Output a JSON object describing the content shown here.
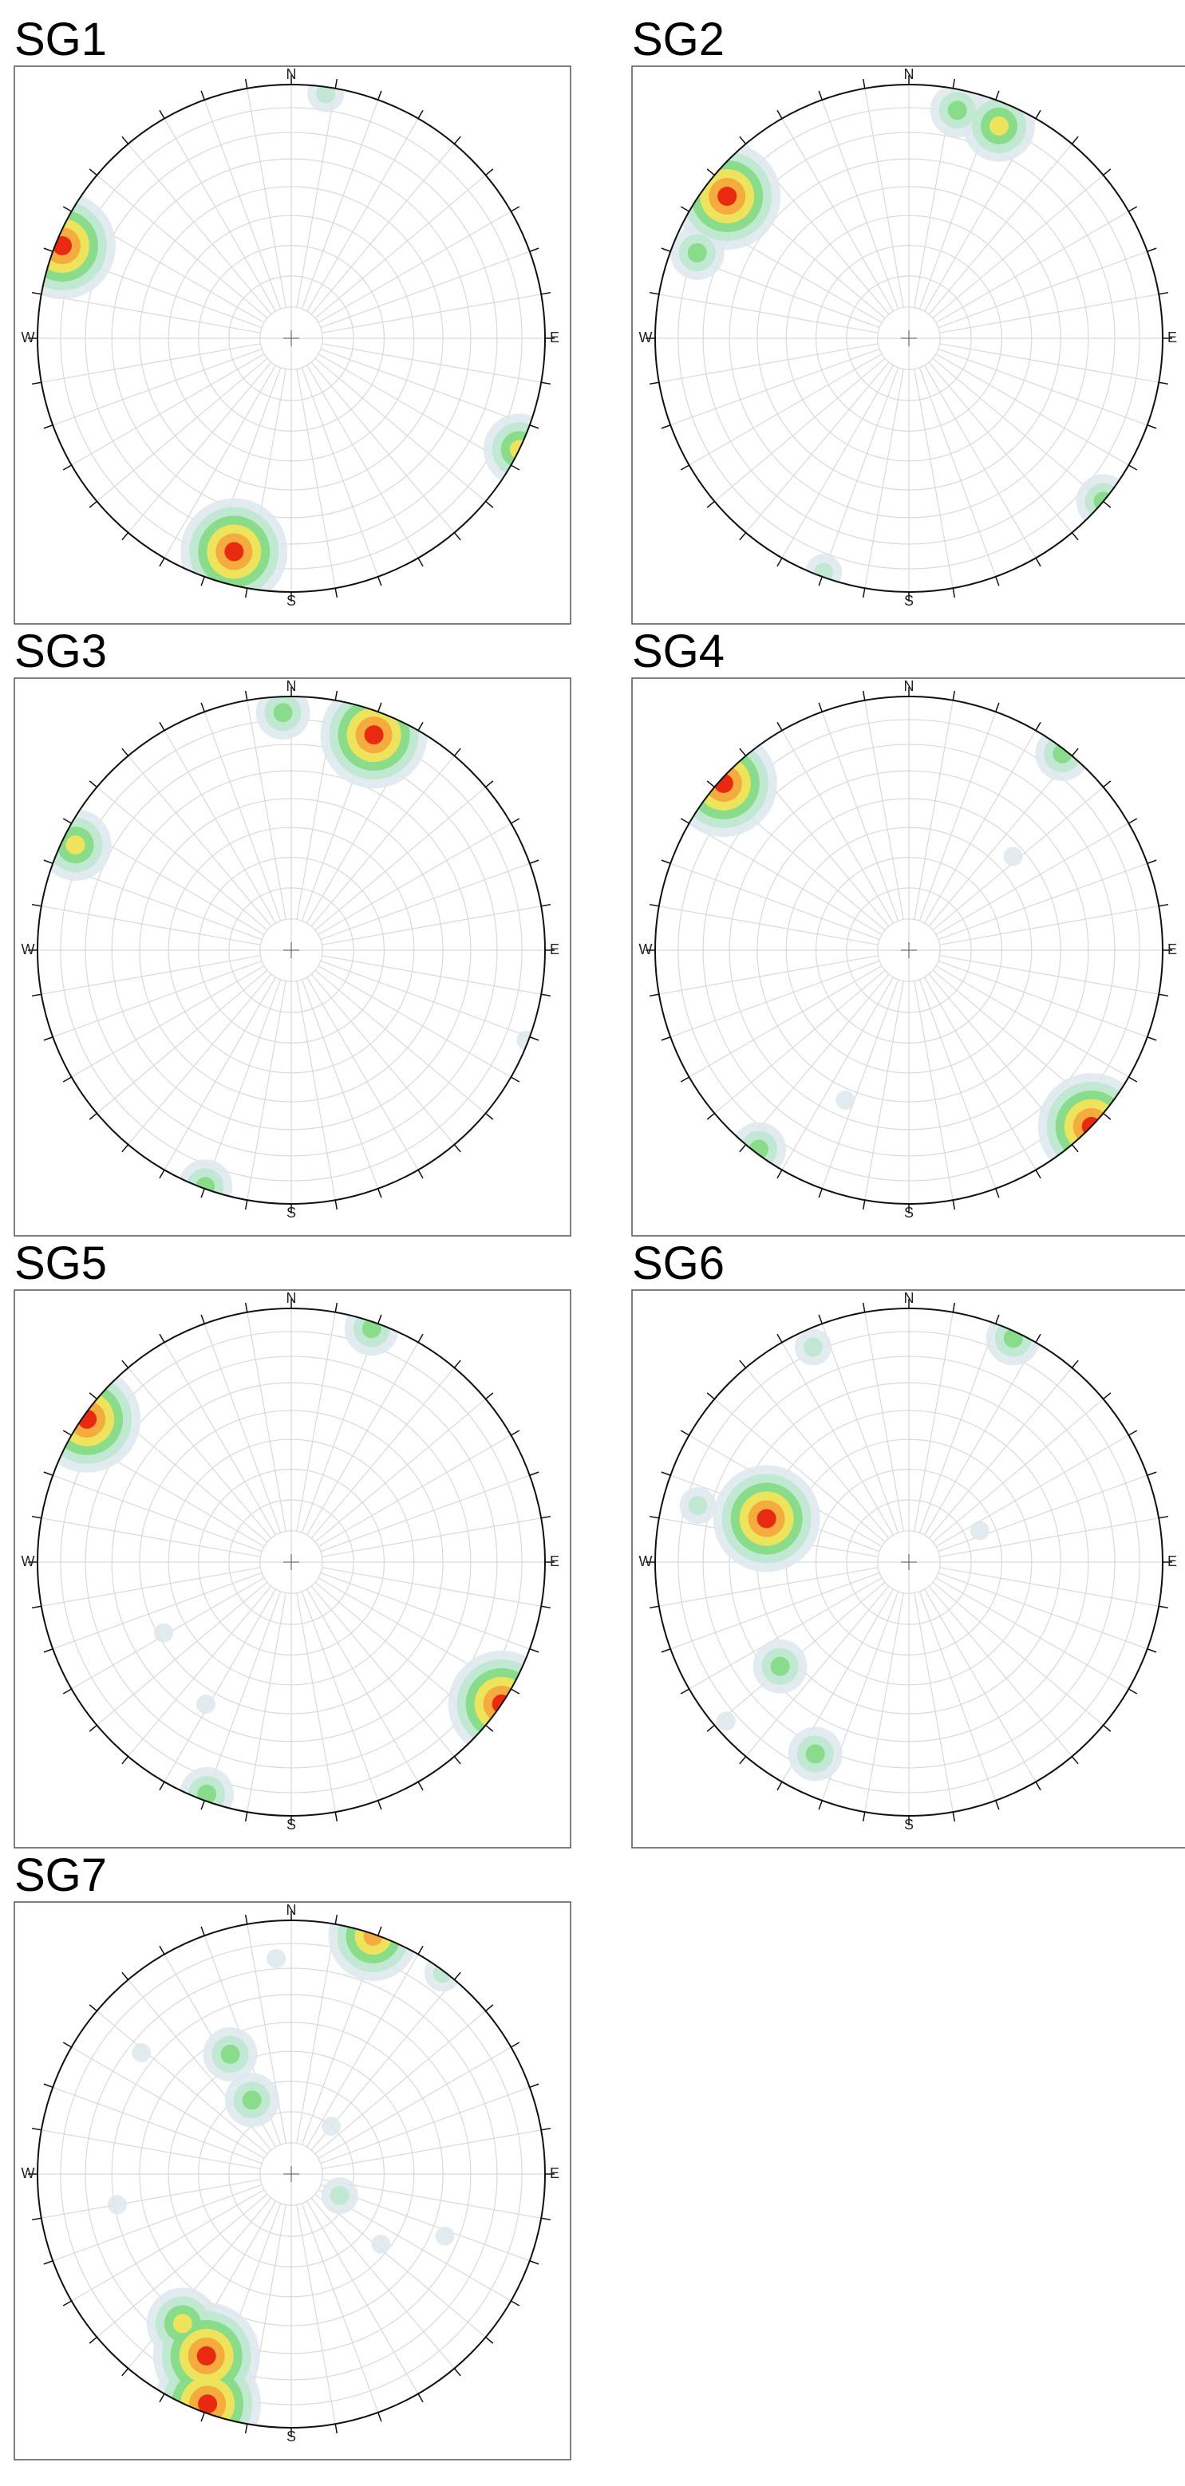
{
  "colormap": [
    "#dde8ec",
    "#bfe8d0",
    "#86dc86",
    "#f2e45a",
    "#f5a83c",
    "#e8230f"
  ],
  "chart_data": [
    {
      "type": "stereonet",
      "title": "SG1",
      "directions": [
        "N",
        "E",
        "S",
        "W"
      ],
      "grid": true,
      "poles": [
        {
          "trend": 292,
          "plunge": 3,
          "density": 6
        },
        {
          "trend": 195,
          "plunge": 14,
          "density": 6
        },
        {
          "trend": 116,
          "plunge": 0,
          "density": 4
        },
        {
          "trend": 8,
          "plunge": 3,
          "density": 2
        }
      ]
    },
    {
      "type": "stereonet",
      "title": "SG2",
      "directions": [
        "N",
        "E",
        "S",
        "W"
      ],
      "grid": true,
      "poles": [
        {
          "trend": 308,
          "plunge": 10,
          "density": 6
        },
        {
          "trend": 292,
          "plunge": 11,
          "density": 3
        },
        {
          "trend": 23,
          "plunge": 10,
          "density": 4
        },
        {
          "trend": 12,
          "plunge": 9,
          "density": 3
        },
        {
          "trend": 130,
          "plunge": 0,
          "density": 3
        },
        {
          "trend": 200,
          "plunge": 2,
          "density": 2
        }
      ]
    },
    {
      "type": "stereonet",
      "title": "SG3",
      "directions": [
        "N",
        "E",
        "S",
        "W"
      ],
      "grid": true,
      "poles": [
        {
          "trend": 21,
          "plunge": 10,
          "density": 6
        },
        {
          "trend": 358,
          "plunge": 7,
          "density": 3
        },
        {
          "trend": 296,
          "plunge": 6,
          "density": 4
        },
        {
          "trend": 200,
          "plunge": 1,
          "density": 3
        },
        {
          "trend": 111,
          "plunge": 1,
          "density": 1
        }
      ]
    },
    {
      "type": "stereonet",
      "title": "SG4",
      "directions": [
        "N",
        "E",
        "S",
        "W"
      ],
      "grid": true,
      "poles": [
        {
          "trend": 312,
          "plunge": 2,
          "density": 6
        },
        {
          "trend": 38,
          "plunge": 2,
          "density": 3
        },
        {
          "trend": 134,
          "plunge": 0,
          "density": 6
        },
        {
          "trend": 217,
          "plunge": 2,
          "density": 3
        },
        {
          "trend": 48,
          "plunge": 44,
          "density": 1
        },
        {
          "trend": 203,
          "plunge": 36,
          "density": 1
        }
      ]
    },
    {
      "type": "stereonet",
      "title": "SG5",
      "directions": [
        "N",
        "E",
        "S",
        "W"
      ],
      "grid": true,
      "poles": [
        {
          "trend": 305,
          "plunge": 2,
          "density": 6
        },
        {
          "trend": 124,
          "plunge": 0,
          "density": 6
        },
        {
          "trend": 19,
          "plunge": 3,
          "density": 3
        },
        {
          "trend": 200,
          "plunge": 3,
          "density": 3
        },
        {
          "trend": 211,
          "plunge": 35,
          "density": 1
        },
        {
          "trend": 241,
          "plunge": 42,
          "density": 1
        }
      ]
    },
    {
      "type": "stereonet",
      "title": "SG6",
      "directions": [
        "N",
        "E",
        "S",
        "W"
      ],
      "grid": true,
      "poles": [
        {
          "trend": 287,
          "plunge": 41,
          "density": 6
        },
        {
          "trend": 285,
          "plunge": 15,
          "density": 2
        },
        {
          "trend": 25,
          "plunge": 3,
          "density": 3
        },
        {
          "trend": 336,
          "plunge": 8,
          "density": 2
        },
        {
          "trend": 231,
          "plunge": 35,
          "density": 3
        },
        {
          "trend": 206,
          "plunge": 17,
          "density": 3
        },
        {
          "trend": 66,
          "plunge": 65,
          "density": 1
        },
        {
          "trend": 229,
          "plunge": 5,
          "density": 1
        }
      ]
    },
    {
      "type": "stereonet",
      "title": "SG7",
      "directions": [
        "N",
        "E",
        "S",
        "W"
      ],
      "grid": true,
      "poles": [
        {
          "trend": 200,
          "plunge": 4,
          "density": 6
        },
        {
          "trend": 205,
          "plunge": 22,
          "density": 6
        },
        {
          "trend": 216,
          "plunge": 28,
          "density": 4
        },
        {
          "trend": 19,
          "plunge": 1,
          "density": 5
        },
        {
          "trend": 37,
          "plunge": 1,
          "density": 2
        },
        {
          "trend": 333,
          "plunge": 46,
          "density": 3
        },
        {
          "trend": 332,
          "plunge": 63,
          "density": 3
        },
        {
          "trend": 114,
          "plunge": 73,
          "density": 2
        },
        {
          "trend": 260,
          "plunge": 31,
          "density": 1
        },
        {
          "trend": 309,
          "plunge": 25,
          "density": 1
        },
        {
          "trend": 112,
          "plunge": 35,
          "density": 1
        },
        {
          "trend": 128,
          "plunge": 53,
          "density": 1
        },
        {
          "trend": 356,
          "plunge": 16,
          "density": 1
        },
        {
          "trend": 40,
          "plunge": 70,
          "density": 1
        }
      ]
    }
  ]
}
